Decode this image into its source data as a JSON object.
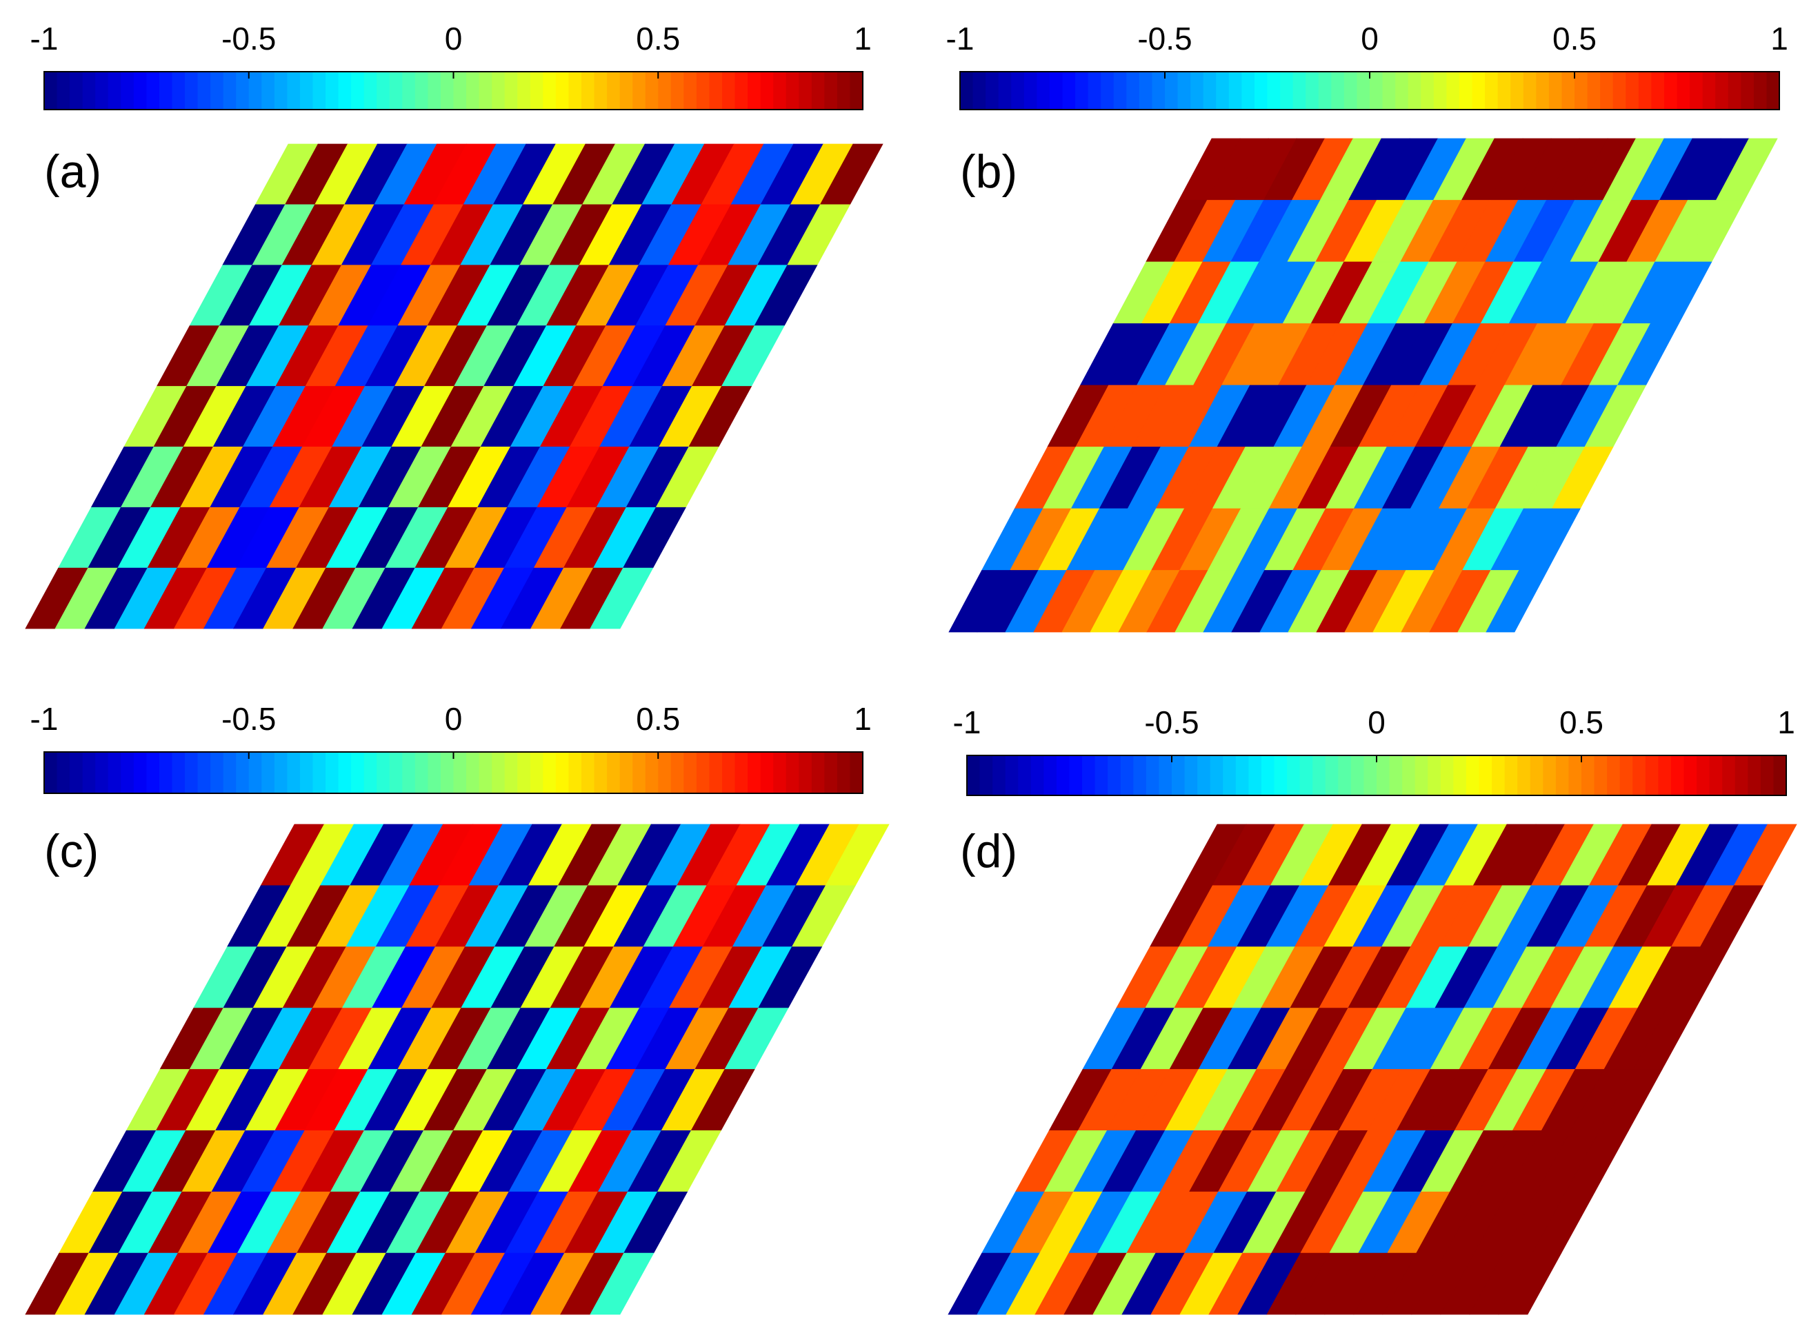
{
  "chart_data": [
    {
      "type": "heatmap",
      "label": "(a)",
      "colormap": "jet",
      "clim": [
        -1,
        1
      ],
      "cticks": [
        -1,
        -0.5,
        0,
        0.5,
        1
      ],
      "values": [
        [
          0.12,
          1,
          0.2,
          -0.93,
          -0.51,
          0.77,
          0.76,
          -0.52,
          -0.93,
          0.22,
          1,
          0.11,
          -0.96,
          -0.42,
          0.82,
          0.69,
          -0.6,
          -0.89,
          0.31,
          0.99
        ],
        [
          -0.99,
          -0.04,
          0.98,
          0.36,
          -0.86,
          -0.64,
          0.65,
          0.85,
          -0.37,
          -0.98,
          0.05,
          0.99,
          0.27,
          -0.91,
          -0.57,
          0.72,
          0.8,
          -0.46,
          -0.95,
          0.15
        ],
        [
          -0.12,
          -1,
          -0.2,
          0.93,
          0.51,
          -0.77,
          -0.76,
          0.52,
          0.93,
          -0.22,
          -1,
          -0.11,
          0.96,
          0.42,
          -0.82,
          -0.69,
          0.6,
          0.89,
          -0.31,
          -0.99
        ],
        [
          0.99,
          0.04,
          -0.98,
          -0.36,
          0.86,
          0.64,
          -0.65,
          -0.85,
          0.37,
          0.98,
          -0.05,
          -0.99,
          -0.27,
          0.91,
          0.57,
          -0.72,
          -0.8,
          0.46,
          0.95,
          -0.15
        ],
        [
          0.12,
          1,
          0.2,
          -0.93,
          -0.51,
          0.77,
          0.76,
          -0.52,
          -0.93,
          0.22,
          1,
          0.11,
          -0.96,
          -0.42,
          0.82,
          0.69,
          -0.6,
          -0.89,
          0.31,
          0.99
        ],
        [
          -0.99,
          -0.04,
          0.98,
          0.36,
          -0.86,
          -0.64,
          0.65,
          0.85,
          -0.37,
          -0.98,
          0.05,
          0.99,
          0.27,
          -0.91,
          -0.57,
          0.72,
          0.8,
          -0.46,
          -0.95,
          0.15
        ],
        [
          -0.12,
          -1,
          -0.2,
          0.93,
          0.51,
          -0.77,
          -0.76,
          0.52,
          0.93,
          -0.22,
          -1,
          -0.11,
          0.96,
          0.42,
          -0.82,
          -0.69,
          0.6,
          0.89,
          -0.31,
          -0.99
        ],
        [
          0.99,
          0.04,
          -0.98,
          -0.36,
          0.86,
          0.64,
          -0.65,
          -0.85,
          0.37,
          0.98,
          -0.05,
          -0.99,
          -0.27,
          0.91,
          0.57,
          -0.72,
          -0.8,
          0.46,
          0.95,
          -0.15
        ]
      ]
    },
    {
      "type": "heatmap",
      "label": "(b)",
      "colormap": "jet",
      "clim": [
        -1,
        1
      ],
      "cticks": [
        -1,
        -0.5,
        0,
        0.5,
        1
      ],
      "values": [
        [
          0.95,
          0.95,
          0.95,
          0.97,
          0.6,
          0.1,
          -0.95,
          -0.95,
          -0.5,
          0.1,
          0.97,
          0.97,
          0.97,
          0.97,
          0.97,
          0.1,
          -0.5,
          -0.95,
          -0.95,
          0.1
        ],
        [
          0.97,
          0.6,
          -0.5,
          -0.6,
          -0.5,
          0.1,
          0.6,
          0.3,
          0.1,
          0.5,
          0.6,
          0.6,
          -0.5,
          -0.6,
          -0.5,
          0.1,
          0.9,
          0.5,
          0.1,
          0.1
        ],
        [
          0.1,
          0.3,
          0.6,
          -0.2,
          -0.5,
          -0.5,
          0.1,
          0.9,
          0.1,
          -0.2,
          0.1,
          0.5,
          0.6,
          -0.2,
          -0.5,
          -0.5,
          0.1,
          0.1,
          -0.5,
          -0.5
        ],
        [
          -0.95,
          -0.95,
          -0.5,
          0.1,
          0.6,
          0.5,
          0.5,
          0.6,
          0.6,
          -0.5,
          -0.95,
          -0.95,
          -0.5,
          0.6,
          0.6,
          0.5,
          0.5,
          0.6,
          0.1,
          -0.5
        ],
        [
          0.97,
          0.6,
          0.6,
          0.6,
          0.6,
          -0.5,
          -0.95,
          -0.95,
          -0.5,
          0.5,
          0.97,
          0.6,
          0.6,
          0.9,
          0.6,
          0.1,
          -0.95,
          -0.95,
          -0.5,
          0.1
        ],
        [
          0.6,
          0.1,
          -0.5,
          -0.95,
          -0.5,
          0.6,
          0.6,
          0.1,
          0.1,
          0.5,
          0.9,
          0.1,
          -0.5,
          -0.95,
          -0.5,
          0.5,
          0.6,
          0.1,
          0.1,
          0.3
        ],
        [
          -0.5,
          0.5,
          0.3,
          -0.5,
          -0.5,
          0.1,
          0.6,
          0.5,
          0.1,
          -0.5,
          0.1,
          0.6,
          0.5,
          -0.5,
          -0.5,
          -0.5,
          0.5,
          -0.2,
          -0.5,
          -0.5
        ],
        [
          -0.95,
          -0.95,
          -0.5,
          0.6,
          0.5,
          0.3,
          0.5,
          0.6,
          0.1,
          -0.5,
          -0.95,
          -0.5,
          0.1,
          0.9,
          0.5,
          0.3,
          0.5,
          0.6,
          0.1,
          -0.5
        ]
      ]
    },
    {
      "type": "heatmap",
      "label": "(c)",
      "colormap": "jet",
      "clim": [
        -1,
        1
      ],
      "cticks": [
        -1,
        -0.5,
        0,
        0.5,
        1
      ],
      "values": [
        [
          0.9,
          0.2,
          -0.3,
          -0.93,
          -0.51,
          0.77,
          0.76,
          -0.52,
          -0.93,
          0.22,
          1,
          0.11,
          -0.96,
          -0.42,
          0.82,
          0.69,
          -0.2,
          -0.89,
          0.31,
          0.2
        ],
        [
          -0.99,
          0.2,
          0.98,
          0.36,
          -0.3,
          -0.64,
          0.65,
          0.85,
          -0.37,
          -0.98,
          0.05,
          0.99,
          0.27,
          -0.91,
          -0.1,
          0.72,
          0.8,
          -0.46,
          -0.95,
          0.15
        ],
        [
          -0.12,
          -1,
          0.2,
          0.93,
          0.51,
          -0.1,
          -0.76,
          0.52,
          0.93,
          -0.22,
          -1,
          0.2,
          0.96,
          0.42,
          -0.82,
          -0.69,
          0.6,
          0.89,
          -0.31,
          -0.99
        ],
        [
          0.99,
          0.04,
          -0.98,
          -0.36,
          0.86,
          0.64,
          0.2,
          -0.85,
          0.37,
          0.98,
          -0.05,
          -0.99,
          -0.27,
          0.91,
          0.1,
          -0.72,
          -0.8,
          0.46,
          0.95,
          -0.15
        ],
        [
          0.12,
          0.9,
          0.2,
          -0.93,
          0.2,
          0.77,
          0.76,
          -0.2,
          -0.93,
          0.22,
          1,
          0.11,
          -0.96,
          -0.42,
          0.82,
          0.69,
          -0.6,
          -0.89,
          0.31,
          0.99
        ],
        [
          -0.99,
          -0.2,
          0.98,
          0.36,
          -0.86,
          -0.64,
          0.65,
          0.85,
          -0.1,
          -0.98,
          0.05,
          0.99,
          0.27,
          -0.91,
          -0.57,
          0.2,
          0.8,
          -0.46,
          -0.95,
          0.15
        ],
        [
          0.3,
          -1,
          -0.2,
          0.93,
          0.51,
          -0.77,
          -0.2,
          0.52,
          0.93,
          -0.22,
          -1,
          -0.11,
          0.96,
          0.42,
          -0.82,
          -0.69,
          0.6,
          0.89,
          -0.31,
          -0.99
        ],
        [
          0.99,
          0.3,
          -0.98,
          -0.36,
          0.86,
          0.64,
          -0.65,
          -0.85,
          0.37,
          0.98,
          0.2,
          -0.99,
          -0.27,
          0.91,
          0.57,
          -0.72,
          -0.8,
          0.46,
          0.95,
          -0.15
        ]
      ]
    },
    {
      "type": "heatmap",
      "label": "(d)",
      "colormap": "jet",
      "clim": [
        -1,
        1
      ],
      "cticks": [
        -1,
        -0.5,
        0,
        0.5,
        1
      ],
      "values": [
        [
          0.97,
          0.95,
          0.6,
          0.1,
          0.3,
          0.97,
          0.2,
          -0.95,
          -0.5,
          0.2,
          0.97,
          0.97,
          0.6,
          0.1,
          0.6,
          0.97,
          0.3,
          -0.95,
          -0.6,
          0.6
        ],
        [
          0.97,
          0.6,
          -0.5,
          -0.95,
          -0.5,
          0.6,
          0.3,
          -0.6,
          0.1,
          0.6,
          0.6,
          0.1,
          -0.5,
          -0.95,
          -0.5,
          0.6,
          0.97,
          0.9,
          0.6,
          0.97
        ],
        [
          0.6,
          0.1,
          0.6,
          0.3,
          0.1,
          0.5,
          0.97,
          0.6,
          0.97,
          0.6,
          -0.2,
          -0.95,
          -0.5,
          0.1,
          0.6,
          0.1,
          -0.5,
          0.3,
          0.97,
          0.97
        ],
        [
          -0.5,
          -0.95,
          0.1,
          0.97,
          -0.5,
          -0.95,
          0.5,
          0.97,
          0.6,
          0.1,
          -0.5,
          -0.5,
          0.1,
          0.6,
          0.97,
          -0.5,
          -0.95,
          0.6,
          0.97,
          0.97
        ],
        [
          0.97,
          0.6,
          0.6,
          0.6,
          0.3,
          0.1,
          0.6,
          0.97,
          0.6,
          0.97,
          0.6,
          0.6,
          0.97,
          0.97,
          0.6,
          0.1,
          0.6,
          0.97,
          0.97,
          0.97
        ],
        [
          0.6,
          0.1,
          -0.5,
          -0.95,
          -0.5,
          0.6,
          0.97,
          0.6,
          0.1,
          0.6,
          0.97,
          0.6,
          -0.5,
          -0.95,
          0.1,
          0.97,
          0.97,
          0.97,
          0.97,
          0.97
        ],
        [
          -0.5,
          0.5,
          0.3,
          -0.5,
          -0.2,
          0.6,
          0.6,
          -0.5,
          -0.95,
          0.1,
          0.97,
          0.6,
          0.1,
          -0.5,
          0.5,
          0.97,
          0.97,
          0.97,
          0.97,
          0.97
        ],
        [
          -0.95,
          -0.5,
          0.3,
          0.6,
          0.97,
          0.1,
          -0.95,
          0.6,
          0.3,
          0.6,
          -0.95,
          0.97,
          0.97,
          0.97,
          0.97,
          0.97,
          0.97,
          0.97,
          0.97,
          0.97
        ]
      ]
    }
  ]
}
